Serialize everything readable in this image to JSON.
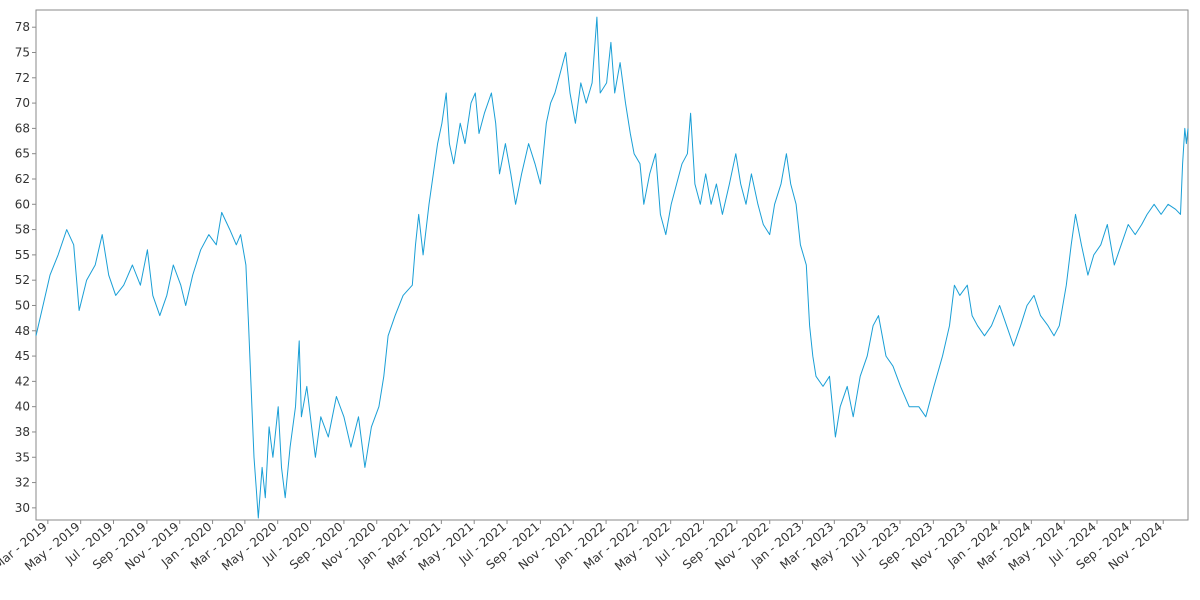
{
  "chart_data": {
    "type": "line",
    "title": "",
    "xlabel": "",
    "ylabel": "",
    "grid": false,
    "legend": "none",
    "line_color": "#1a9fd6",
    "x_range": [
      "2019-02-07",
      "2024-12-17"
    ],
    "ylim": [
      28.8,
      79.2
    ],
    "y_ticks": [
      30,
      32.5,
      35,
      37.5,
      40,
      42.5,
      45,
      47.5,
      50,
      52.5,
      55,
      57.5,
      60,
      62.5,
      65,
      67.5,
      70,
      72.5,
      75,
      77.5
    ],
    "y_tick_labels": [
      "30",
      "32",
      "35",
      "38",
      "40",
      "42",
      "45",
      "48",
      "50",
      "52",
      "55",
      "58",
      "60",
      "62",
      "65",
      "68",
      "70",
      "72",
      "75",
      "78"
    ],
    "x_ticks": [
      {
        "date": "2019-03-01",
        "label": "Mar - 2019"
      },
      {
        "date": "2019-05-01",
        "label": "May - 2019"
      },
      {
        "date": "2019-07-01",
        "label": "Jul - 2019"
      },
      {
        "date": "2019-09-01",
        "label": "Sep - 2019"
      },
      {
        "date": "2019-11-01",
        "label": "Nov - 2019"
      },
      {
        "date": "2020-01-01",
        "label": "Jan - 2020"
      },
      {
        "date": "2020-03-01",
        "label": "Mar - 2020"
      },
      {
        "date": "2020-05-01",
        "label": "May - 2020"
      },
      {
        "date": "2020-07-01",
        "label": "Jul - 2020"
      },
      {
        "date": "2020-09-01",
        "label": "Sep - 2020"
      },
      {
        "date": "2020-11-01",
        "label": "Nov - 2020"
      },
      {
        "date": "2021-01-01",
        "label": "Jan - 2021"
      },
      {
        "date": "2021-03-01",
        "label": "Mar - 2021"
      },
      {
        "date": "2021-05-01",
        "label": "May - 2021"
      },
      {
        "date": "2021-07-01",
        "label": "Jul - 2021"
      },
      {
        "date": "2021-09-01",
        "label": "Sep - 2021"
      },
      {
        "date": "2021-11-01",
        "label": "Nov - 2021"
      },
      {
        "date": "2022-01-01",
        "label": "Jan - 2022"
      },
      {
        "date": "2022-03-01",
        "label": "Mar - 2022"
      },
      {
        "date": "2022-05-01",
        "label": "May - 2022"
      },
      {
        "date": "2022-07-01",
        "label": "Jul - 2022"
      },
      {
        "date": "2022-09-01",
        "label": "Sep - 2022"
      },
      {
        "date": "2022-11-01",
        "label": "Nov - 2022"
      },
      {
        "date": "2023-01-01",
        "label": "Jan - 2023"
      },
      {
        "date": "2023-03-01",
        "label": "Mar - 2023"
      },
      {
        "date": "2023-05-01",
        "label": "May - 2023"
      },
      {
        "date": "2023-07-01",
        "label": "Jul - 2023"
      },
      {
        "date": "2023-09-01",
        "label": "Sep - 2023"
      },
      {
        "date": "2023-11-01",
        "label": "Nov - 2023"
      },
      {
        "date": "2024-01-01",
        "label": "Jan - 2024"
      },
      {
        "date": "2024-03-01",
        "label": "Mar - 2024"
      },
      {
        "date": "2024-05-01",
        "label": "May - 2024"
      },
      {
        "date": "2024-07-01",
        "label": "Jul - 2024"
      },
      {
        "date": "2024-09-01",
        "label": "Sep - 2024"
      },
      {
        "date": "2024-11-01",
        "label": "Nov - 2024"
      }
    ],
    "series": [
      {
        "values": [
          [
            "2019-02-07",
            47.0
          ],
          [
            "2019-02-20",
            50.0
          ],
          [
            "2019-03-05",
            53.0
          ],
          [
            "2019-03-20",
            55.0
          ],
          [
            "2019-04-05",
            57.5
          ],
          [
            "2019-04-18",
            56.0
          ],
          [
            "2019-04-28",
            49.5
          ],
          [
            "2019-05-12",
            52.5
          ],
          [
            "2019-05-28",
            54.0
          ],
          [
            "2019-06-10",
            57.0
          ],
          [
            "2019-06-22",
            53.0
          ],
          [
            "2019-07-05",
            51.0
          ],
          [
            "2019-07-20",
            52.0
          ],
          [
            "2019-08-05",
            54.0
          ],
          [
            "2019-08-20",
            52.0
          ],
          [
            "2019-09-02",
            55.5
          ],
          [
            "2019-09-12",
            51.0
          ],
          [
            "2019-09-25",
            49.0
          ],
          [
            "2019-10-08",
            51.0
          ],
          [
            "2019-10-20",
            54.0
          ],
          [
            "2019-11-03",
            52.0
          ],
          [
            "2019-11-12",
            50.0
          ],
          [
            "2019-11-25",
            53.0
          ],
          [
            "2019-12-10",
            55.5
          ],
          [
            "2019-12-25",
            57.0
          ],
          [
            "2020-01-08",
            56.0
          ],
          [
            "2020-01-18",
            59.2
          ],
          [
            "2020-02-02",
            57.5
          ],
          [
            "2020-02-14",
            56.0
          ],
          [
            "2020-02-22",
            57.0
          ],
          [
            "2020-03-03",
            54.0
          ],
          [
            "2020-03-08",
            48.0
          ],
          [
            "2020-03-14",
            40.0
          ],
          [
            "2020-03-18",
            35.0
          ],
          [
            "2020-03-22",
            32.0
          ],
          [
            "2020-03-26",
            29.0
          ],
          [
            "2020-04-02",
            34.0
          ],
          [
            "2020-04-08",
            31.0
          ],
          [
            "2020-04-15",
            38.0
          ],
          [
            "2020-04-22",
            35.0
          ],
          [
            "2020-05-02",
            40.0
          ],
          [
            "2020-05-08",
            34.0
          ],
          [
            "2020-05-15",
            31.0
          ],
          [
            "2020-05-24",
            36.0
          ],
          [
            "2020-06-03",
            40.0
          ],
          [
            "2020-06-10",
            46.5
          ],
          [
            "2020-06-14",
            39.0
          ],
          [
            "2020-06-24",
            42.0
          ],
          [
            "2020-07-03",
            38.0
          ],
          [
            "2020-07-10",
            35.0
          ],
          [
            "2020-07-20",
            39.0
          ],
          [
            "2020-08-03",
            37.0
          ],
          [
            "2020-08-18",
            41.0
          ],
          [
            "2020-09-01",
            39.0
          ],
          [
            "2020-09-14",
            36.0
          ],
          [
            "2020-09-28",
            39.0
          ],
          [
            "2020-10-10",
            34.0
          ],
          [
            "2020-10-22",
            38.0
          ],
          [
            "2020-11-05",
            40.0
          ],
          [
            "2020-11-14",
            43.0
          ],
          [
            "2020-11-22",
            47.0
          ],
          [
            "2020-12-05",
            49.0
          ],
          [
            "2020-12-20",
            51.0
          ],
          [
            "2021-01-06",
            52.0
          ],
          [
            "2021-01-12",
            56.0
          ],
          [
            "2021-01-18",
            59.0
          ],
          [
            "2021-01-26",
            55.0
          ],
          [
            "2021-02-06",
            60.0
          ],
          [
            "2021-02-14",
            63.0
          ],
          [
            "2021-02-22",
            66.0
          ],
          [
            "2021-03-02",
            68.0
          ],
          [
            "2021-03-10",
            71.0
          ],
          [
            "2021-03-16",
            66.0
          ],
          [
            "2021-03-24",
            64.0
          ],
          [
            "2021-04-05",
            68.0
          ],
          [
            "2021-04-14",
            66.0
          ],
          [
            "2021-04-25",
            70.0
          ],
          [
            "2021-05-03",
            71.0
          ],
          [
            "2021-05-10",
            67.0
          ],
          [
            "2021-05-20",
            69.0
          ],
          [
            "2021-06-02",
            71.0
          ],
          [
            "2021-06-10",
            68.0
          ],
          [
            "2021-06-17",
            63.0
          ],
          [
            "2021-06-28",
            66.0
          ],
          [
            "2021-07-08",
            63.0
          ],
          [
            "2021-07-17",
            60.0
          ],
          [
            "2021-07-28",
            63.0
          ],
          [
            "2021-08-10",
            66.0
          ],
          [
            "2021-08-22",
            64.0
          ],
          [
            "2021-09-01",
            62.0
          ],
          [
            "2021-09-12",
            68.0
          ],
          [
            "2021-09-20",
            70.0
          ],
          [
            "2021-09-28",
            71.0
          ],
          [
            "2021-10-08",
            73.0
          ],
          [
            "2021-10-18",
            75.0
          ],
          [
            "2021-10-26",
            71.0
          ],
          [
            "2021-11-05",
            68.0
          ],
          [
            "2021-11-15",
            72.0
          ],
          [
            "2021-11-25",
            70.0
          ],
          [
            "2021-12-06",
            72.0
          ],
          [
            "2021-12-15",
            78.5
          ],
          [
            "2021-12-21",
            71.0
          ],
          [
            "2022-01-02",
            72.0
          ],
          [
            "2022-01-10",
            76.0
          ],
          [
            "2022-01-17",
            71.0
          ],
          [
            "2022-01-27",
            74.0
          ],
          [
            "2022-02-06",
            70.0
          ],
          [
            "2022-02-15",
            67.0
          ],
          [
            "2022-02-22",
            65.0
          ],
          [
            "2022-03-05",
            64.0
          ],
          [
            "2022-03-12",
            60.0
          ],
          [
            "2022-03-23",
            63.0
          ],
          [
            "2022-04-03",
            65.0
          ],
          [
            "2022-04-12",
            59.0
          ],
          [
            "2022-04-22",
            57.0
          ],
          [
            "2022-05-02",
            60.0
          ],
          [
            "2022-05-12",
            62.0
          ],
          [
            "2022-05-22",
            64.0
          ],
          [
            "2022-06-01",
            65.0
          ],
          [
            "2022-06-07",
            69.0
          ],
          [
            "2022-06-15",
            62.0
          ],
          [
            "2022-06-25",
            60.0
          ],
          [
            "2022-07-05",
            63.0
          ],
          [
            "2022-07-15",
            60.0
          ],
          [
            "2022-07-25",
            62.0
          ],
          [
            "2022-08-05",
            59.0
          ],
          [
            "2022-08-18",
            62.0
          ],
          [
            "2022-08-30",
            65.0
          ],
          [
            "2022-09-08",
            62.0
          ],
          [
            "2022-09-18",
            60.0
          ],
          [
            "2022-09-28",
            63.0
          ],
          [
            "2022-10-10",
            60.0
          ],
          [
            "2022-10-20",
            58.0
          ],
          [
            "2022-11-01",
            57.0
          ],
          [
            "2022-11-10",
            60.0
          ],
          [
            "2022-11-22",
            62.0
          ],
          [
            "2022-12-02",
            65.0
          ],
          [
            "2022-12-10",
            62.0
          ],
          [
            "2022-12-20",
            60.0
          ],
          [
            "2022-12-28",
            56.0
          ],
          [
            "2023-01-08",
            54.0
          ],
          [
            "2023-01-14",
            48.0
          ],
          [
            "2023-01-20",
            45.0
          ],
          [
            "2023-01-26",
            43.0
          ],
          [
            "2023-02-08",
            42.0
          ],
          [
            "2023-02-20",
            43.0
          ],
          [
            "2023-03-03",
            37.0
          ],
          [
            "2023-03-12",
            40.0
          ],
          [
            "2023-03-25",
            42.0
          ],
          [
            "2023-04-05",
            39.0
          ],
          [
            "2023-04-18",
            43.0
          ],
          [
            "2023-05-01",
            45.0
          ],
          [
            "2023-05-12",
            48.0
          ],
          [
            "2023-05-22",
            49.0
          ],
          [
            "2023-06-05",
            45.0
          ],
          [
            "2023-06-18",
            44.0
          ],
          [
            "2023-07-02",
            42.0
          ],
          [
            "2023-07-18",
            40.0
          ],
          [
            "2023-08-05",
            40.0
          ],
          [
            "2023-08-18",
            39.0
          ],
          [
            "2023-09-02",
            42.0
          ],
          [
            "2023-09-18",
            45.0
          ],
          [
            "2023-10-01",
            48.0
          ],
          [
            "2023-10-10",
            52.0
          ],
          [
            "2023-10-20",
            51.0
          ],
          [
            "2023-11-03",
            52.0
          ],
          [
            "2023-11-12",
            49.0
          ],
          [
            "2023-11-22",
            48.0
          ],
          [
            "2023-12-05",
            47.0
          ],
          [
            "2023-12-18",
            48.0
          ],
          [
            "2024-01-02",
            50.0
          ],
          [
            "2024-01-15",
            48.0
          ],
          [
            "2024-01-28",
            46.0
          ],
          [
            "2024-02-10",
            48.0
          ],
          [
            "2024-02-22",
            50.0
          ],
          [
            "2024-03-06",
            51.0
          ],
          [
            "2024-03-18",
            49.0
          ],
          [
            "2024-04-01",
            48.0
          ],
          [
            "2024-04-12",
            47.0
          ],
          [
            "2024-04-22",
            48.0
          ],
          [
            "2024-05-05",
            52.0
          ],
          [
            "2024-05-14",
            56.0
          ],
          [
            "2024-05-22",
            59.0
          ],
          [
            "2024-06-02",
            56.0
          ],
          [
            "2024-06-14",
            53.0
          ],
          [
            "2024-06-25",
            55.0
          ],
          [
            "2024-07-08",
            56.0
          ],
          [
            "2024-07-20",
            58.0
          ],
          [
            "2024-08-02",
            54.0
          ],
          [
            "2024-08-15",
            56.0
          ],
          [
            "2024-08-28",
            58.0
          ],
          [
            "2024-09-10",
            57.0
          ],
          [
            "2024-09-22",
            58.0
          ],
          [
            "2024-10-02",
            59.0
          ],
          [
            "2024-10-15",
            60.0
          ],
          [
            "2024-10-28",
            59.0
          ],
          [
            "2024-11-10",
            60.0
          ],
          [
            "2024-11-24",
            59.5
          ],
          [
            "2024-12-03",
            59.0
          ],
          [
            "2024-12-07",
            64.0
          ],
          [
            "2024-12-11",
            67.5
          ],
          [
            "2024-12-14",
            66.0
          ],
          [
            "2024-12-17",
            67.5
          ]
        ]
      }
    ]
  }
}
